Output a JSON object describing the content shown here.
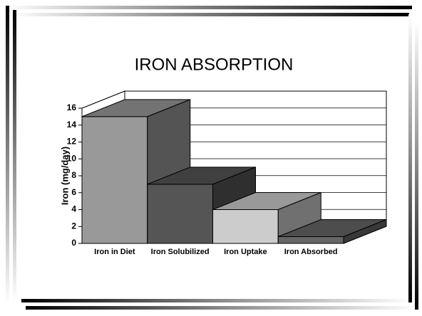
{
  "chart_data": {
    "type": "bar3d",
    "title": "IRON ABSORPTION",
    "ylabel": "Iron (mg/day)",
    "categories": [
      "Iron in Diet",
      "Iron Solubilized",
      "Iron Uptake",
      "Iron Absorbed"
    ],
    "values": [
      15,
      7,
      4,
      0.8
    ],
    "colors": [
      "#999999",
      "#555555",
      "#cccccc",
      "#666666"
    ],
    "ylim": [
      0,
      16
    ],
    "yticks": [
      0,
      2,
      4,
      6,
      8,
      10,
      12,
      14,
      16
    ],
    "grid": true
  }
}
